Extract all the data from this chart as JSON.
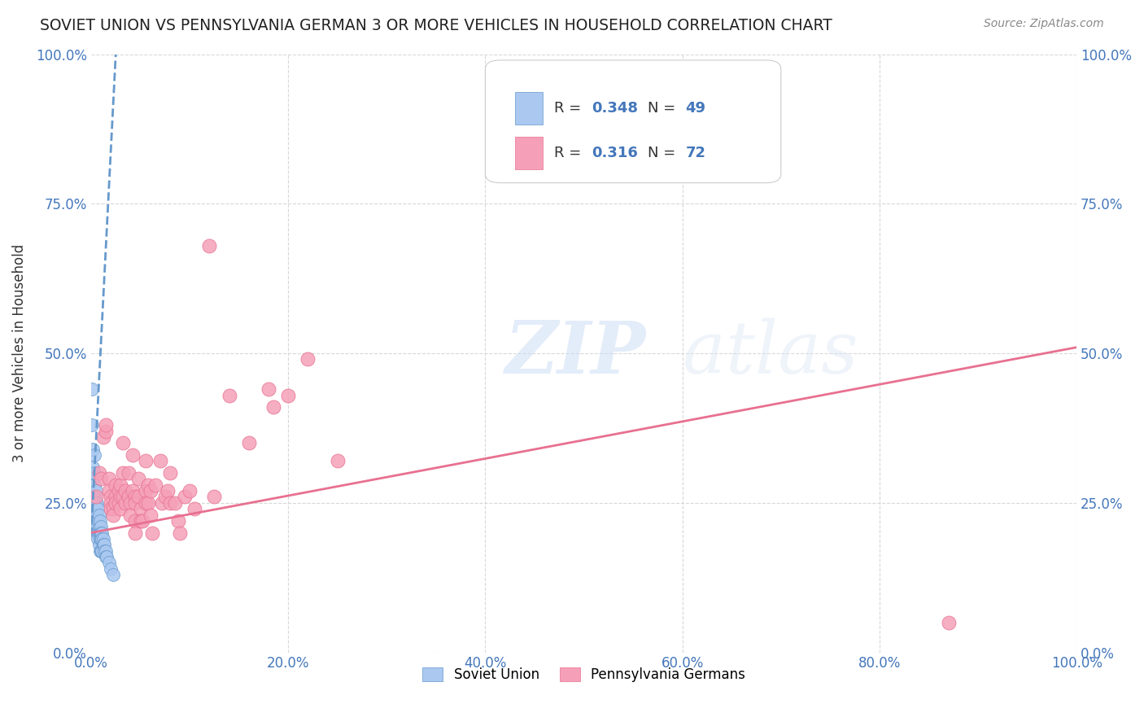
{
  "title": "SOVIET UNION VS PENNSYLVANIA GERMAN 3 OR MORE VEHICLES IN HOUSEHOLD CORRELATION CHART",
  "source": "Source: ZipAtlas.com",
  "ylabel": "3 or more Vehicles in Household",
  "xlabel": "",
  "xlim": [
    0,
    100
  ],
  "ylim": [
    0,
    100
  ],
  "xtick_labels": [
    "0.0%",
    "20.0%",
    "40.0%",
    "60.0%",
    "80.0%",
    "100.0%"
  ],
  "ytick_labels": [
    "0.0%",
    "25.0%",
    "50.0%",
    "75.0%",
    "100.0%"
  ],
  "ytick_positions": [
    0,
    25,
    50,
    75,
    100
  ],
  "xtick_positions": [
    0,
    20,
    40,
    60,
    80,
    100
  ],
  "legend_label_1": "Soviet Union",
  "legend_label_2": "Pennsylvania Germans",
  "R1": 0.348,
  "N1": 49,
  "R2": 0.316,
  "N2": 72,
  "scatter_blue": [
    [
      0.1,
      44
    ],
    [
      0.1,
      38
    ],
    [
      0.15,
      34
    ],
    [
      0.2,
      31
    ],
    [
      0.2,
      29
    ],
    [
      0.3,
      33
    ],
    [
      0.3,
      30
    ],
    [
      0.3,
      28
    ],
    [
      0.3,
      26
    ],
    [
      0.4,
      25
    ],
    [
      0.4,
      24
    ],
    [
      0.4,
      23
    ],
    [
      0.5,
      27
    ],
    [
      0.5,
      25
    ],
    [
      0.5,
      23
    ],
    [
      0.5,
      21
    ],
    [
      0.6,
      25
    ],
    [
      0.6,
      23
    ],
    [
      0.6,
      21
    ],
    [
      0.6,
      20
    ],
    [
      0.7,
      24
    ],
    [
      0.7,
      22
    ],
    [
      0.7,
      20
    ],
    [
      0.7,
      19
    ],
    [
      0.8,
      23
    ],
    [
      0.8,
      21
    ],
    [
      0.8,
      20
    ],
    [
      0.8,
      18
    ],
    [
      0.9,
      22
    ],
    [
      0.9,
      20
    ],
    [
      0.9,
      19
    ],
    [
      0.9,
      17
    ],
    [
      1.0,
      21
    ],
    [
      1.0,
      20
    ],
    [
      1.0,
      19
    ],
    [
      1.0,
      17
    ],
    [
      1.1,
      20
    ],
    [
      1.1,
      19
    ],
    [
      1.1,
      17
    ],
    [
      1.2,
      19
    ],
    [
      1.2,
      18
    ],
    [
      1.3,
      18
    ],
    [
      1.3,
      17
    ],
    [
      1.5,
      17
    ],
    [
      1.5,
      16
    ],
    [
      1.6,
      16
    ],
    [
      1.8,
      15
    ],
    [
      2.0,
      14
    ],
    [
      2.2,
      13
    ]
  ],
  "scatter_pink": [
    [
      0.5,
      26
    ],
    [
      0.8,
      30
    ],
    [
      1.0,
      29
    ],
    [
      1.2,
      36
    ],
    [
      1.5,
      37
    ],
    [
      1.5,
      38
    ],
    [
      1.8,
      29
    ],
    [
      1.8,
      27
    ],
    [
      2.0,
      26
    ],
    [
      2.0,
      25
    ],
    [
      2.0,
      24
    ],
    [
      2.2,
      24
    ],
    [
      2.2,
      23
    ],
    [
      2.5,
      28
    ],
    [
      2.5,
      26
    ],
    [
      2.5,
      25
    ],
    [
      2.8,
      27
    ],
    [
      2.8,
      25
    ],
    [
      3.0,
      28
    ],
    [
      3.0,
      26
    ],
    [
      3.0,
      24
    ],
    [
      3.2,
      35
    ],
    [
      3.2,
      30
    ],
    [
      3.2,
      26
    ],
    [
      3.5,
      27
    ],
    [
      3.5,
      25
    ],
    [
      3.8,
      30
    ],
    [
      3.8,
      26
    ],
    [
      4.0,
      25
    ],
    [
      4.0,
      23
    ],
    [
      4.2,
      33
    ],
    [
      4.2,
      27
    ],
    [
      4.5,
      26
    ],
    [
      4.5,
      25
    ],
    [
      4.5,
      22
    ],
    [
      4.5,
      20
    ],
    [
      4.8,
      29
    ],
    [
      4.8,
      26
    ],
    [
      5.0,
      24
    ],
    [
      5.0,
      22
    ],
    [
      5.2,
      22
    ],
    [
      5.5,
      32
    ],
    [
      5.5,
      27
    ],
    [
      5.5,
      25
    ],
    [
      5.8,
      28
    ],
    [
      5.8,
      25
    ],
    [
      6.0,
      27
    ],
    [
      6.0,
      23
    ],
    [
      6.2,
      20
    ],
    [
      6.5,
      28
    ],
    [
      7.0,
      32
    ],
    [
      7.2,
      25
    ],
    [
      7.5,
      26
    ],
    [
      7.8,
      27
    ],
    [
      8.0,
      30
    ],
    [
      8.0,
      25
    ],
    [
      8.5,
      25
    ],
    [
      8.8,
      22
    ],
    [
      9.0,
      20
    ],
    [
      9.5,
      26
    ],
    [
      10.0,
      27
    ],
    [
      10.5,
      24
    ],
    [
      12.0,
      68
    ],
    [
      12.5,
      26
    ],
    [
      14.0,
      43
    ],
    [
      16.0,
      35
    ],
    [
      18.0,
      44
    ],
    [
      18.5,
      41
    ],
    [
      20.0,
      43
    ],
    [
      22.0,
      49
    ],
    [
      25.0,
      32
    ],
    [
      87.0,
      5
    ]
  ],
  "blue_line": {
    "x0": 0,
    "y0": 19.5,
    "x1": 2.5,
    "y1": 100
  },
  "pink_line": {
    "x0": 0,
    "y0": 20,
    "x1": 100,
    "y1": 51
  },
  "blue_color": "#aac8f0",
  "pink_color": "#f5a0b8",
  "blue_line_color": "#6699cc",
  "pink_line_color": "#e87090",
  "watermark_zip": "ZIP",
  "watermark_atlas": "atlas",
  "background_color": "#ffffff",
  "grid_color": "#d8d8d8"
}
